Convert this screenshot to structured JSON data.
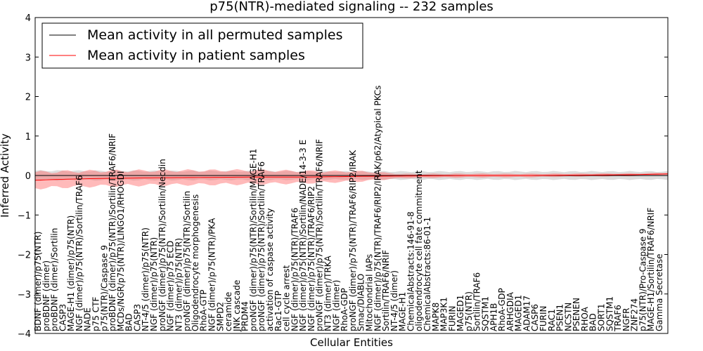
{
  "chart_data": {
    "type": "line",
    "title": "p75(NTR)-mediated signaling -- 232 samples",
    "xlabel": "Cellular Entities",
    "ylabel": "Inferred Activity",
    "ylim": [
      -4,
      4
    ],
    "yticks": [
      -4,
      -3,
      -2,
      -1,
      0,
      1,
      2,
      3,
      4
    ],
    "xlim": [
      0,
      232
    ],
    "legend_position": "top-left",
    "series": [
      {
        "name": "Mean activity in all permuted samples",
        "color": "#000000",
        "values_hint": "near 0 across all entities"
      },
      {
        "name": "Mean activity in patient samples",
        "color": "#ff0000",
        "values_hint": "about -0.1 at left rising to about 0.03 at right"
      }
    ],
    "patient_mean": [
      [
        0,
        -0.12
      ],
      [
        8,
        -0.1
      ],
      [
        20,
        -0.08
      ],
      [
        40,
        -0.06
      ],
      [
        60,
        -0.05
      ],
      [
        80,
        -0.04
      ],
      [
        100,
        -0.04
      ],
      [
        120,
        -0.02
      ],
      [
        140,
        -0.01
      ],
      [
        160,
        0.0
      ],
      [
        180,
        0.0
      ],
      [
        200,
        0.01
      ],
      [
        220,
        0.02
      ],
      [
        232,
        0.04
      ]
    ],
    "patient_band_halfwidth": [
      [
        0,
        0.2
      ],
      [
        40,
        0.18
      ],
      [
        80,
        0.17
      ],
      [
        120,
        0.12
      ],
      [
        135,
        0.05
      ],
      [
        232,
        0.03
      ]
    ],
    "permuted_band_halfwidth": [
      [
        0,
        0.12
      ],
      [
        120,
        0.1
      ],
      [
        232,
        0.1
      ]
    ],
    "entity_labels": [
      "BDNF (dimer)/p75(NTR)",
      "proBDNF (dimer)",
      "proBDNF (dimer)/Sortilin",
      "CASP3",
      "MAGE-H1 (dimer)/p75(NTR)",
      "NGF (dimer)/p75(NTR)/Sortilin/TRAF6",
      "NADE",
      "p75 CTF",
      "p75(NTR)/Caspase 9",
      "proBDNF (dimer)/p75(NTR)/Sortilin/TRAF6/NRIF",
      "MCDs/NGR/p75(NTR)/LINGO1/RHOGDI",
      "BAD",
      "CASP3",
      "NT-4/5 (dimer)/p75(NTR)",
      "NGF (dimer)/p75(NTR)",
      "proNGF (dimer)/p75(NTR)/Sortilin/Necdin",
      "NGF (dimer)/p75 ECD",
      "NT3 (dimer)/p75(NTR)",
      "proNGF (dimer)/p75(NTR)/Sortilin",
      "Oligodendrocyte morphogenesis",
      "RhoA-GTP",
      "NGF (dimer)/p75(NTR)/PKA",
      "SMPD2",
      "ceramide",
      "JNK cascade",
      "PRDM4",
      "proNGF (dimer)/p75(NTR)/Sortilin/MAGE-H1",
      "proNGF (dimer)/p75(NTR)/Sortilin/TRAF6",
      "activation of caspase activity",
      "Rac1-GTP",
      "cell cycle arrest",
      "NGF (dimer)/p75(NTR)/TRAF6",
      "NGF (dimer)/p75(NTR)/Sortilin/NADE/14-3-3 E",
      "NGF (dimer)/p75(NTR)/TRAF6/RIP2",
      "proNGF (dimer)/p75(NTR)/Sortilin/TRAF6/NRIF",
      "NT3 (dimer)/TRKA",
      "NGF (dimer)",
      "RhoA-GDP",
      "proNGF (dimer)/p75(NTR)/TRAF6/RIP2/IRAK",
      "Smac/DIABLO",
      "Mitochondrial IAPs",
      "NGF (dimer)/p75(NTR)/TRAF6/RIP2/IRAK/p62/Atypical PKCs",
      "Sortilin/TRAF6/NRIF",
      "NT-4/5 (dimer)",
      "MAGE-H1",
      "ChemicalAbstracts:146-91-8",
      "oligodendrocyte cell fate commitment",
      "ChemicalAbstracts:86-01-1",
      "MAPK8",
      "MAP3K1",
      "FURIN",
      "MAGED1",
      "p75(NTR)",
      "Sortilin/TRAF6",
      "SQSTM1",
      "APH1B",
      "RhoA-GDP",
      "ARHGDIA",
      "MAGED1",
      "ADAM17",
      "CASP6",
      "FURIN",
      "RAC1",
      "PSEN1",
      "NCSTN",
      "PSENEN",
      "RHOA",
      "BAD",
      "SORT1",
      "SQSTM1",
      "TRAF6",
      "NGFR",
      "ZNF274",
      "p75(NTR)/Pro-Caspase 9",
      "MAGE-H1/Sortilin/TRAF6/NRIF",
      "Gamma Secretase"
    ]
  }
}
